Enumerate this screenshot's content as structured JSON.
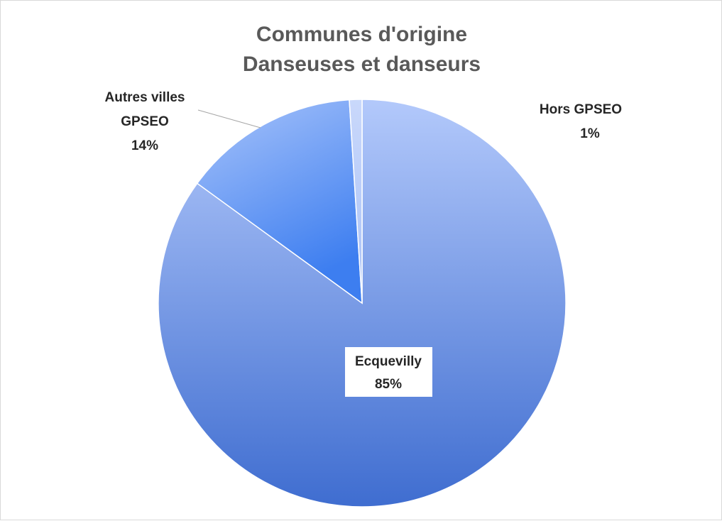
{
  "chart_data": {
    "type": "pie",
    "title": "Communes d'origine",
    "subtitle": "Danseuses et danseurs",
    "slices": [
      {
        "label": "Ecquevilly",
        "value": 85,
        "display": "85%"
      },
      {
        "label": "Autres villes GPSEO",
        "value": 14,
        "display": "14%"
      },
      {
        "label": "Hors GPSEO",
        "value": 1,
        "display": "1%"
      }
    ],
    "colors": [
      "#7ea3f0",
      "#5b8ff0",
      "#b8cdf8"
    ]
  },
  "labels": {
    "slice0_line1": "Ecquevilly",
    "slice0_line2": "85%",
    "slice1_line1": "Autres villes",
    "slice1_line2": "GPSEO",
    "slice1_line3": "14%",
    "slice2_line1": "Hors GPSEO",
    "slice2_line2": "1%"
  }
}
